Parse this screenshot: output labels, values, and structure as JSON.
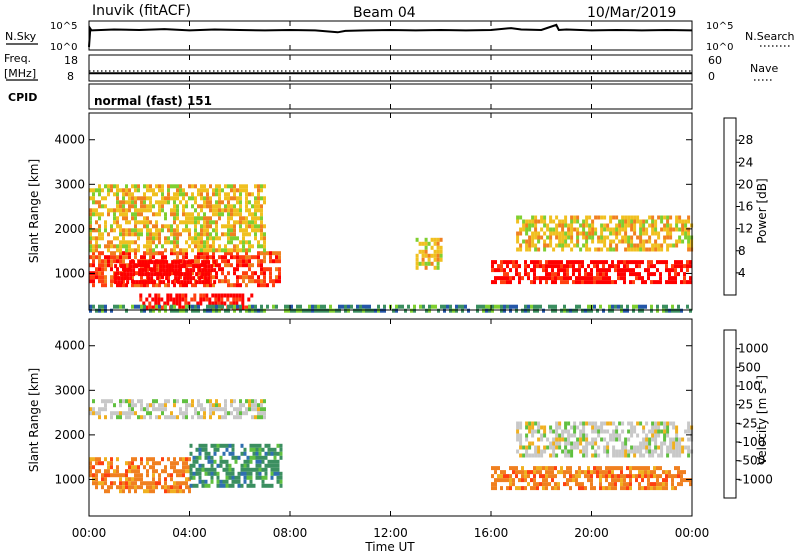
{
  "header": {
    "station": "Inuvik (fitACF)",
    "beam": "Beam 04",
    "date": "10/Mar/2019"
  },
  "chart_data": [
    {
      "type": "line",
      "panel": "noise",
      "ylabel_left": "N.Sky",
      "ylabel_right": "N.Search",
      "left_ticks": [
        "10^5",
        "10^0"
      ],
      "right_ticks": [
        "10^5",
        "10^0"
      ],
      "series": [
        {
          "name": "N.Sky",
          "style": "solid",
          "x_hours": [
            0,
            0.05,
            0.1,
            1,
            2,
            3,
            4,
            5,
            6,
            7,
            8,
            9,
            9.9,
            10.2,
            11,
            12,
            13,
            14,
            15,
            16,
            16.8,
            17.2,
            18,
            18.6,
            18.7,
            19,
            20,
            21,
            22,
            23,
            24
          ],
          "log10_values": [
            0,
            4.0,
            3.6,
            3.8,
            3.7,
            3.9,
            3.6,
            3.8,
            3.7,
            3.6,
            3.7,
            3.6,
            3.2,
            3.5,
            3.6,
            3.7,
            3.6,
            3.7,
            3.6,
            3.7,
            4.1,
            3.8,
            3.7,
            4.8,
            3.7,
            3.8,
            3.6,
            3.7,
            3.6,
            3.7,
            3.6
          ]
        },
        {
          "name": "N.Search",
          "style": "dotted",
          "x_hours": [],
          "log10_values": []
        }
      ]
    },
    {
      "type": "line",
      "panel": "frequency",
      "ylabel_left": "Freq. [MHz]",
      "ylabel_right": "Nave",
      "left_ticks": [
        18,
        8
      ],
      "right_ticks": [
        60,
        0
      ],
      "series": [
        {
          "name": "Freq",
          "style": "solid",
          "x_hours": [
            0,
            24
          ],
          "values": [
            10.5,
            10.5
          ]
        },
        {
          "name": "Nave",
          "style": "dotted",
          "x_hours": [
            0,
            24
          ],
          "values": [
            22,
            22
          ]
        }
      ]
    },
    {
      "type": "table",
      "panel": "cpid",
      "label": "CPID",
      "text": "normal (fast) 151"
    },
    {
      "type": "heatmap",
      "panel": "power",
      "ylabel": "Slant Range [km]",
      "yticks": [
        1000,
        2000,
        3000,
        4000
      ],
      "ylim": [
        180,
        4600
      ],
      "colorbar_label": "Power [dB]",
      "colorbar_ticks": [
        4,
        8,
        12,
        16,
        20,
        24,
        28
      ],
      "colorbar_colors": [
        "#0000ff",
        "#2456a8",
        "#3b8f60",
        "#7fcf30",
        "#f0c020",
        "#f08020",
        "#ff4010",
        "#ff0000"
      ],
      "regions": [
        {
          "x_start_hours": 0.0,
          "x_end_hours": 7.6,
          "range_km": [
            700,
            1500
          ],
          "dB": 24
        },
        {
          "x_start_hours": 1.0,
          "x_end_hours": 5.0,
          "range_km": [
            800,
            1300
          ],
          "dB": 30
        },
        {
          "x_start_hours": 0.0,
          "x_end_hours": 7.0,
          "range_km": [
            1500,
            3000
          ],
          "dB": 14
        },
        {
          "x_start_hours": 2.0,
          "x_end_hours": 6.5,
          "range_km": [
            250,
            550
          ],
          "dB": 26
        },
        {
          "x_start_hours": 0.0,
          "x_end_hours": 24.0,
          "range_km": [
            180,
            300
          ],
          "dB": 8
        },
        {
          "x_start_hours": 13.0,
          "x_end_hours": 14.0,
          "range_km": [
            1100,
            1800
          ],
          "dB": 16
        },
        {
          "x_start_hours": 16.0,
          "x_end_hours": 24.0,
          "range_km": [
            800,
            1300
          ],
          "dB": 26
        },
        {
          "x_start_hours": 17.0,
          "x_end_hours": 24.0,
          "range_km": [
            1500,
            2300
          ],
          "dB": 14
        }
      ]
    },
    {
      "type": "heatmap",
      "panel": "velocity",
      "ylabel": "Slant Range [km]",
      "yticks": [
        1000,
        2000,
        3000,
        4000
      ],
      "ylim": [
        180,
        4600
      ],
      "colorbar_label": "Velocity [m s-1]",
      "colorbar_ticks": [
        1000,
        500,
        100,
        25,
        -25,
        -100,
        -500,
        -1000
      ],
      "colorbar_colors": [
        "#1030c0",
        "#2f6fb0",
        "#3b8f60",
        "#60c040",
        "#c8c8c8",
        "#f0b020",
        "#f08020",
        "#ff4010",
        "#ff0000"
      ],
      "regions": [
        {
          "x_start_hours": 0.0,
          "x_end_hours": 4.0,
          "range_km": [
            700,
            1500
          ],
          "velocity": -150
        },
        {
          "x_start_hours": 4.0,
          "x_end_hours": 7.6,
          "range_km": [
            900,
            1800
          ],
          "velocity": 100
        },
        {
          "x_start_hours": 0.0,
          "x_end_hours": 7.0,
          "range_km": [
            2400,
            2800
          ],
          "velocity": 0
        },
        {
          "x_start_hours": 16.0,
          "x_end_hours": 24.0,
          "range_km": [
            800,
            1300
          ],
          "velocity": -300
        },
        {
          "x_start_hours": 17.0,
          "x_end_hours": 24.0,
          "range_km": [
            1500,
            2300
          ],
          "velocity": 0
        }
      ]
    }
  ],
  "xaxis": {
    "label": "Time UT",
    "ticks": [
      "00:00",
      "04:00",
      "08:00",
      "12:00",
      "16:00",
      "20:00",
      "00:00"
    ]
  }
}
